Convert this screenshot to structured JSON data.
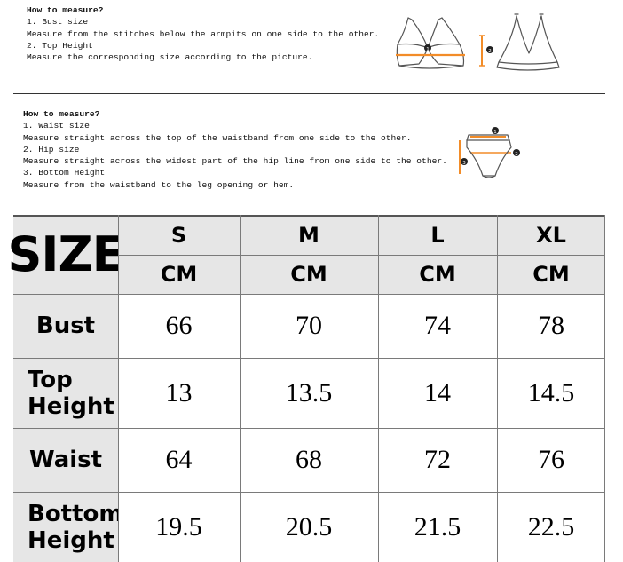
{
  "top_instructions": {
    "heading": "How to measure?",
    "lines": [
      "1. Bust size",
      "Measure from the stitches below the armpits on one side to the other.",
      "2. Top Height",
      "Measure the corresponding size according to the picture."
    ]
  },
  "bottom_instructions": {
    "heading": "How to measure?",
    "lines": [
      "1. Waist size",
      "Measure straight across the top of the waistband from one side to the other.",
      "2. Hip size",
      "Measure straight across the widest part of the hip line from one side to the other.",
      "3. Bottom Height",
      "Measure from the waistband to the leg opening or hem."
    ]
  },
  "diagram_markers": {
    "bra_front": "1",
    "bra_side": "2",
    "panty_top": "1",
    "panty_right": "2",
    "panty_left": "3"
  },
  "size_table": {
    "corner": "SIZE",
    "sizes": [
      "S",
      "M",
      "L",
      "XL"
    ],
    "unit": "CM",
    "rows": [
      {
        "label": "Bust",
        "values": [
          "66",
          "70",
          "74",
          "78"
        ]
      },
      {
        "label": "Top Height",
        "values": [
          "13",
          "13.5",
          "14",
          "14.5"
        ]
      },
      {
        "label": "Waist",
        "values": [
          "64",
          "68",
          "72",
          "76"
        ]
      },
      {
        "label": "Bottom Height",
        "values": [
          "19.5",
          "20.5",
          "21.5",
          "22.5"
        ]
      }
    ]
  },
  "colors": {
    "header_fill": "#e6e6e6",
    "accent": "#f28c28"
  }
}
